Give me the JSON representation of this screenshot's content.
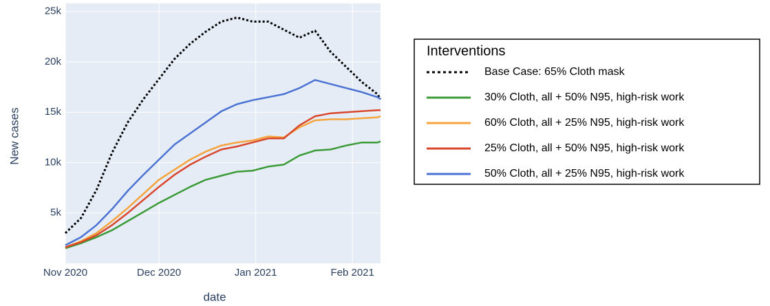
{
  "chart_data": {
    "type": "line",
    "xlabel": "date",
    "ylabel": "New cases",
    "legend_title": "Interventions",
    "legend_position": "right",
    "grid": true,
    "x": [
      0,
      5,
      10,
      15,
      20,
      25,
      30,
      35,
      40,
      45,
      50,
      55,
      60,
      65,
      70,
      75,
      80,
      85,
      90,
      95,
      100,
      101
    ],
    "xlim": [
      0,
      101
    ],
    "xticks": [
      {
        "value": 0,
        "label": "Nov 2020"
      },
      {
        "value": 30,
        "label": "Dec 2020"
      },
      {
        "value": 61,
        "label": "Jan 2021"
      },
      {
        "value": 92,
        "label": "Feb 2021"
      }
    ],
    "ylim": [
      0,
      25800
    ],
    "yticks": [
      {
        "value": 5000,
        "label": "5k"
      },
      {
        "value": 10000,
        "label": "10k"
      },
      {
        "value": 15000,
        "label": "15k"
      },
      {
        "value": 20000,
        "label": "20k"
      },
      {
        "value": 25000,
        "label": "25k"
      }
    ],
    "series": [
      {
        "name": "Base Case: 65% Cloth mask",
        "color": "#000000",
        "dash": "dot",
        "values": [
          3000,
          4500,
          7300,
          11000,
          14000,
          16300,
          18300,
          20300,
          21800,
          23000,
          24000,
          24400,
          24000,
          24000,
          23200,
          22400,
          23100,
          21000,
          19500,
          18000,
          16800,
          16300
        ]
      },
      {
        "name": "30% Cloth, all + 50% N95, high-risk work",
        "color": "#3a9a35",
        "values": [
          1500,
          2000,
          2600,
          3300,
          4200,
          5100,
          6000,
          6800,
          7600,
          8300,
          8700,
          9100,
          9200,
          9600,
          9800,
          10700,
          11200,
          11300,
          11700,
          12000,
          12000,
          12100
        ]
      },
      {
        "name": "60% Cloth, all + 25% N95, high-risk work",
        "color": "#f5a33a",
        "values": [
          1600,
          2200,
          3000,
          4200,
          5500,
          6900,
          8300,
          9300,
          10300,
          11100,
          11700,
          12000,
          12200,
          12600,
          12500,
          13500,
          14200,
          14300,
          14300,
          14400,
          14500,
          14600
        ]
      },
      {
        "name": "25% Cloth, all + 50% N95, high-risk work",
        "color": "#d9462b",
        "values": [
          1600,
          2100,
          2800,
          3800,
          5000,
          6300,
          7600,
          8800,
          9800,
          10600,
          11300,
          11600,
          12000,
          12400,
          12400,
          13700,
          14600,
          14900,
          15000,
          15100,
          15200,
          15200
        ]
      },
      {
        "name": "50% Cloth, all + 25% N95, high-risk work",
        "color": "#4a72d3",
        "values": [
          1800,
          2600,
          3800,
          5400,
          7200,
          8800,
          10300,
          11800,
          12900,
          14000,
          15100,
          15800,
          16200,
          16500,
          16800,
          17400,
          18200,
          17800,
          17400,
          17000,
          16500,
          16300
        ]
      }
    ]
  }
}
